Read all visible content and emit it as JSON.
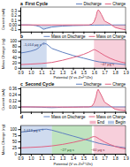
{
  "chart_data": [
    {
      "type": "area",
      "title": "a  First Cycle",
      "ylabel": "Current (mA)",
      "xlim": [
        0.9,
        1.9
      ],
      "xticks": [
        0.9,
        {
          "value": 1.0,
          "label": "1.0"
        },
        1.1,
        1.2,
        1.3,
        1.4,
        1.5,
        1.6,
        1.7,
        1.8,
        1.9
      ],
      "ylim": [
        -0.15,
        0.38
      ],
      "yticks": [
        -0.1,
        {
          "value": 0.0,
          "label": "0.00"
        },
        0.1,
        0.2,
        0.3
      ],
      "tick_labels": "y",
      "legend": "upper right",
      "series": [
        {
          "name": "Discharge",
          "color": "#6080c0",
          "x": [
            0.9,
            0.95,
            0.98,
            1.0,
            1.02,
            1.05,
            1.08,
            1.1,
            1.12,
            1.15,
            1.2,
            1.3,
            1.4,
            1.5,
            1.6,
            1.7,
            1.8,
            1.9
          ],
          "values": [
            -0.005,
            -0.005,
            -0.006,
            -0.008,
            -0.012,
            -0.02,
            -0.04,
            -0.07,
            -0.1,
            -0.08,
            -0.05,
            -0.03,
            -0.02,
            -0.015,
            -0.01,
            -0.008,
            -0.006,
            -0.005
          ]
        },
        {
          "name": "Charge",
          "color": "#e06080",
          "x": [
            0.9,
            1.0,
            1.1,
            1.2,
            1.3,
            1.4,
            1.5,
            1.55,
            1.58,
            1.6,
            1.62,
            1.63,
            1.64,
            1.65,
            1.67,
            1.7,
            1.75,
            1.8,
            1.85,
            1.9
          ],
          "values": [
            -0.005,
            -0.005,
            -0.005,
            -0.005,
            -0.005,
            -0.005,
            -0.005,
            -0.005,
            0.01,
            0.06,
            0.18,
            0.28,
            0.32,
            0.3,
            0.22,
            0.08,
            0.02,
            -0.06,
            -0.09,
            -0.11
          ]
        }
      ]
    },
    {
      "type": "line",
      "title": "b",
      "xlabel": "Potential (V vs Zn²⁺/Zn)",
      "ylabel": "Mass Change (ng)",
      "xlim": [
        0.9,
        1.9
      ],
      "xticks": [
        0.9,
        {
          "value": 1.0,
          "label": "1.0"
        },
        1.1,
        1.2,
        1.3,
        1.4,
        1.5,
        1.6,
        1.7,
        1.8,
        1.9
      ],
      "ylim": [
        0,
        105
      ],
      "yticks": [
        0,
        20,
        40,
        60,
        80,
        100
      ],
      "legend": "upper right",
      "series": [
        {
          "name": "Mass on Discharge",
          "color": "#6080c0",
          "x": [
            0.9,
            0.95,
            1.0,
            1.05,
            1.08,
            1.1,
            1.12,
            1.15,
            1.2,
            1.3,
            1.4,
            1.5,
            1.6,
            1.65,
            1.7,
            1.75,
            1.8,
            1.85,
            1.9
          ],
          "values": [
            55,
            58,
            62,
            68,
            76,
            86,
            92,
            88,
            72,
            58,
            46,
            36,
            26,
            22,
            20,
            18,
            16,
            14,
            12
          ]
        },
        {
          "name": "Mass on Charge",
          "color": "#e06080",
          "x": [
            0.9,
            1.0,
            1.1,
            1.2,
            1.3,
            1.4,
            1.5,
            1.55,
            1.58,
            1.6,
            1.62,
            1.65,
            1.7,
            1.75,
            1.8,
            1.85,
            1.9
          ],
          "values": [
            12,
            14,
            16,
            20,
            28,
            38,
            50,
            58,
            64,
            68,
            65,
            58,
            46,
            36,
            28,
            22,
            18
          ]
        }
      ],
      "bands": [
        {
          "x": [
            0.9,
            1.15
          ],
          "color": "#a0b8e0"
        },
        {
          "x": [
            1.6,
            1.9
          ],
          "color": "#f0a0b8"
        }
      ],
      "annotations": [
        {
          "text": "-1,014 μg s⁻¹",
          "color": "#203060"
        },
        {
          "text": "~47 μg s",
          "color": "#802030"
        }
      ]
    },
    {
      "type": "area",
      "title": "c  Second Cycle",
      "ylabel": "Current (mA)",
      "xlim": [
        0.9,
        1.9
      ],
      "xticks": [
        0.9,
        {
          "value": 1.0,
          "label": "1.0"
        },
        1.1,
        1.2,
        1.3,
        1.4,
        1.5,
        1.6,
        1.7,
        1.8,
        1.9
      ],
      "ylim": [
        -0.1,
        0.38
      ],
      "yticks": [
        {
          "value": 0.0,
          "label": "0.00"
        },
        0.12,
        0.24,
        0.36
      ],
      "tick_labels": "y",
      "legend": "upper right",
      "series": [
        {
          "name": "Discharge",
          "color": "#6080c0",
          "x": [
            0.9,
            0.95,
            1.0,
            1.05,
            1.1,
            1.15,
            1.2,
            1.25,
            1.3,
            1.4,
            1.5,
            1.6,
            1.7,
            1.8,
            1.9
          ],
          "values": [
            -0.005,
            -0.005,
            -0.006,
            -0.008,
            -0.01,
            -0.015,
            -0.018,
            -0.015,
            -0.01,
            -0.007,
            -0.005,
            -0.005,
            -0.005,
            -0.005,
            -0.005
          ]
        },
        {
          "name": "Charge",
          "color": "#e06080",
          "x": [
            0.9,
            1.0,
            1.1,
            1.2,
            1.25,
            1.3,
            1.35,
            1.4,
            1.45,
            1.5,
            1.55,
            1.58,
            1.6,
            1.62,
            1.63,
            1.64,
            1.65,
            1.67,
            1.7,
            1.75,
            1.8,
            1.85,
            1.9
          ],
          "values": [
            -0.005,
            -0.005,
            -0.005,
            -0.005,
            -0.006,
            -0.007,
            -0.008,
            -0.008,
            -0.007,
            -0.005,
            -0.005,
            0.01,
            0.07,
            0.2,
            0.3,
            0.34,
            0.3,
            0.22,
            0.09,
            0.02,
            -0.05,
            -0.07,
            -0.08
          ]
        }
      ]
    },
    {
      "type": "line",
      "title": "d",
      "xlabel": "Potential (V vs Zn²⁺/Zn)",
      "ylabel": "Mass Change (ng)",
      "xlim": [
        0.9,
        1.9
      ],
      "xticks": [
        0.9,
        {
          "value": 1.0,
          "label": "1.0"
        },
        1.1,
        1.2,
        1.3,
        1.4,
        1.5,
        1.6,
        1.7,
        1.8,
        1.9
      ],
      "ylim": [
        0,
        115
      ],
      "yticks": [
        0,
        25,
        50,
        75,
        100
      ],
      "legend": "upper right",
      "series": [
        {
          "name": "Mass on Discharge",
          "color": "#6080c0",
          "x": [
            0.9,
            0.95,
            1.0,
            1.05,
            1.1,
            1.15,
            1.2,
            1.3,
            1.4,
            1.5,
            1.6,
            1.65,
            1.7,
            1.75,
            1.8,
            1.85,
            1.9
          ],
          "values": [
            88,
            90,
            93,
            96,
            99,
            100,
            96,
            84,
            72,
            60,
            48,
            42,
            38,
            34,
            30,
            27,
            24
          ]
        },
        {
          "name": "Mass on Charge",
          "color": "#e06080",
          "x": [
            0.9,
            1.0,
            1.1,
            1.2,
            1.3,
            1.4,
            1.5,
            1.55,
            1.58,
            1.6,
            1.62,
            1.65,
            1.7,
            1.75,
            1.8,
            1.85,
            1.9
          ],
          "values": [
            24,
            26,
            28,
            32,
            38,
            46,
            56,
            62,
            68,
            70,
            68,
            60,
            48,
            38,
            30,
            24,
            20
          ]
        }
      ],
      "bands": [
        {
          "name": "End",
          "x": [
            1.6,
            1.9
          ],
          "color": "#f0a0b8"
        },
        {
          "name": "Begin",
          "x": [
            0.9,
            1.2
          ],
          "color": "#a0b8e0"
        },
        {
          "x": [
            1.2,
            1.58
          ],
          "color": "#80c880"
        }
      ],
      "annotations": [
        {
          "text": "-1,013 μg s⁻¹",
          "color": "#203060"
        },
        {
          "text": "~27 μg s",
          "color": "#206020"
        },
        {
          "text": "~60 μg s",
          "color": "#802030"
        }
      ]
    }
  ]
}
